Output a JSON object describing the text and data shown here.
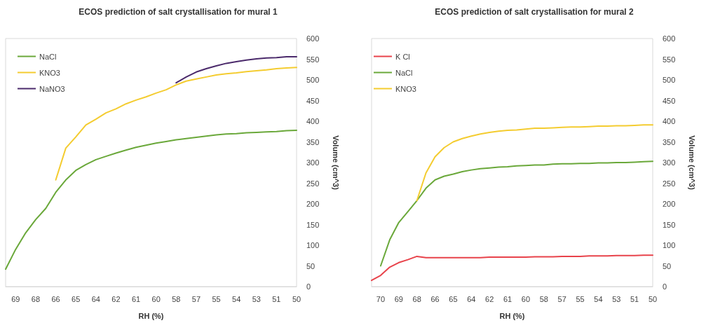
{
  "chart_data": [
    {
      "type": "line",
      "title": "ECOS prediction of salt crystallisation for mural 1",
      "xlabel": "RH (%)",
      "ylabel": "Volume (cm^3)",
      "categories": [
        null,
        "69",
        null,
        "68",
        null,
        "66",
        null,
        "65",
        null,
        "64",
        null,
        "62",
        null,
        "61",
        null,
        "60",
        null,
        "58",
        null,
        "57",
        null,
        "55",
        null,
        "54",
        null,
        "53",
        null,
        "51",
        null,
        "50"
      ],
      "series": [
        {
          "name": "NaCl",
          "color": "#6aa83a",
          "values": [
            42,
            90,
            130,
            162,
            189,
            228,
            258,
            281,
            295,
            307,
            315,
            323,
            330,
            337,
            342,
            347,
            351,
            355,
            358,
            361,
            364,
            367,
            369,
            370,
            372,
            373,
            374,
            375,
            377,
            378
          ]
        },
        {
          "name": "KNO3",
          "color": "#f4cc30",
          "values": [
            null,
            null,
            null,
            null,
            null,
            258,
            335,
            362,
            391,
            405,
            420,
            430,
            442,
            451,
            459,
            468,
            476,
            488,
            497,
            502,
            507,
            512,
            515,
            517,
            520,
            522,
            524,
            527,
            529,
            530
          ]
        },
        {
          "name": "NaNO3",
          "color": "#4b2a6b",
          "values": [
            null,
            null,
            null,
            null,
            null,
            null,
            null,
            null,
            null,
            null,
            null,
            null,
            null,
            null,
            null,
            null,
            null,
            493,
            507,
            519,
            527,
            534,
            540,
            544,
            548,
            551,
            553,
            554,
            556,
            556
          ]
        }
      ],
      "ylim": [
        0,
        600
      ],
      "yticks": [
        0,
        50,
        100,
        150,
        200,
        250,
        300,
        350,
        400,
        450,
        500,
        550,
        600
      ],
      "grid": false,
      "legend": "top left",
      "marker": "none",
      "line_style": "solid"
    },
    {
      "type": "line",
      "title": "ECOS prediction of salt crystallisation for mural 2",
      "xlabel": "RH (%)",
      "ylabel": "Volume (cm^3)",
      "categories": [
        null,
        "70",
        null,
        "69",
        null,
        "68",
        null,
        "66",
        null,
        "65",
        null,
        "64",
        null,
        "62",
        null,
        "61",
        null,
        "60",
        null,
        "58",
        null,
        "57",
        null,
        "55",
        null,
        "54",
        null,
        "53",
        null,
        "51",
        null,
        "50"
      ],
      "series": [
        {
          "name": "K Cl",
          "color": "#e8434b",
          "values": [
            15,
            27,
            47,
            58,
            65,
            73,
            70,
            70,
            70,
            70,
            70,
            70,
            70,
            71,
            71,
            71,
            71,
            71,
            72,
            72,
            72,
            73,
            73,
            73,
            74,
            74,
            74,
            75,
            75,
            75,
            76,
            76
          ]
        },
        {
          "name": "NaCl",
          "color": "#6aa83a",
          "values": [
            null,
            50,
            113,
            155,
            181,
            208,
            238,
            258,
            267,
            272,
            278,
            282,
            285,
            287,
            289,
            290,
            292,
            293,
            294,
            294,
            296,
            297,
            297,
            298,
            298,
            299,
            299,
            300,
            300,
            301,
            302,
            303
          ]
        },
        {
          "name": "KNO3",
          "color": "#f4cc30",
          "values": [
            null,
            null,
            null,
            null,
            null,
            208,
            275,
            314,
            336,
            350,
            358,
            364,
            369,
            373,
            376,
            378,
            379,
            381,
            383,
            383,
            384,
            385,
            386,
            386,
            387,
            388,
            388,
            389,
            389,
            390,
            391,
            391
          ]
        }
      ],
      "ylim": [
        0,
        600
      ],
      "yticks": [
        0,
        50,
        100,
        150,
        200,
        250,
        300,
        350,
        400,
        450,
        500,
        550,
        600
      ],
      "grid": false,
      "legend": "top left",
      "marker": "none",
      "line_style": "solid"
    }
  ]
}
